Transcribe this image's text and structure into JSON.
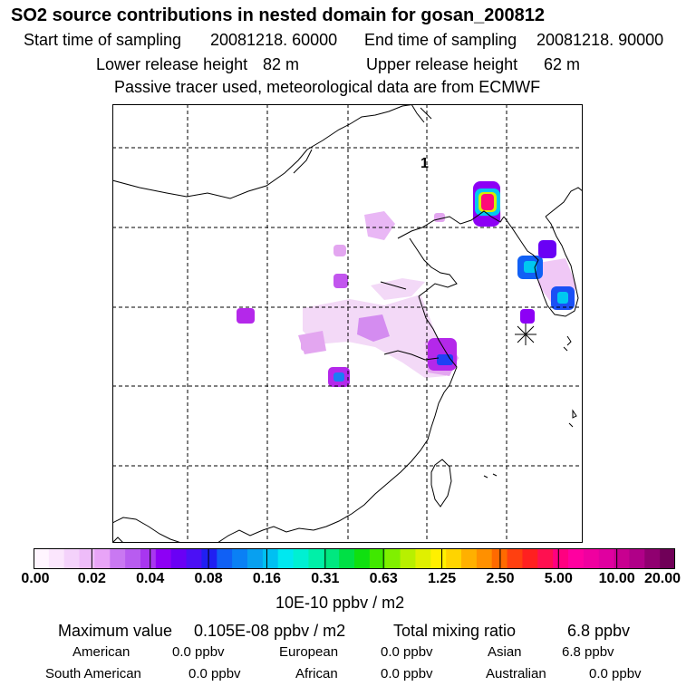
{
  "header": {
    "title": "SO2 source contributions in nested domain for gosan_200812",
    "start_label": "Start time of sampling",
    "start_value": "20081218. 60000",
    "end_label": "End time of sampling",
    "end_value": "20081218. 90000",
    "lower_label": "Lower release height",
    "lower_value": "82 m",
    "upper_label": "Upper release height",
    "upper_value": "62 m",
    "note": "Passive tracer used, meteorological data are from ECMWF"
  },
  "map": {
    "marker_label": "1",
    "receptor": "Gosan",
    "colors": {
      "very_low": "#f3d9f7",
      "low": "#e3a6f0",
      "mid": "#b428ea",
      "high": "#00c8f0",
      "peak": "#ff0a78"
    }
  },
  "colorbar": {
    "unit": "10E-10 ppbv / m2",
    "ticks": [
      "0.00",
      "0.02",
      "0.04",
      "0.08",
      "0.16",
      "0.31",
      "0.63",
      "1.25",
      "2.50",
      "5.00",
      "10.00",
      "20.00"
    ],
    "colors": [
      "#fff5ff",
      "#fbe6fd",
      "#f4d2fb",
      "#eebcf9",
      "#e8a4f7",
      "#c978f2",
      "#b85cf0",
      "#a836f0",
      "#8d00f5",
      "#6a00f5",
      "#4b10f5",
      "#2020f2",
      "#1060f5",
      "#0a80f5",
      "#08a0f0",
      "#00c0f2",
      "#00e8f0",
      "#00f0d2",
      "#00f0a8",
      "#00e880",
      "#00e045",
      "#10e010",
      "#40e800",
      "#80f000",
      "#b8f000",
      "#e0f000",
      "#fff000",
      "#ffd400",
      "#ffb000",
      "#ff9000",
      "#ff6a00",
      "#ff4010",
      "#ff2020",
      "#ff1050",
      "#ff0080",
      "#ff00a0",
      "#f000a0",
      "#e000a0",
      "#c80090",
      "#b00088",
      "#900070",
      "#700058"
    ]
  },
  "stats": {
    "max_label": "Maximum value",
    "max_value": "0.105E-08 ppbv / m2",
    "total_label": "Total mixing ratio",
    "total_value": "6.8 ppbv",
    "regions": [
      {
        "name": "American",
        "value": "0.0 ppbv"
      },
      {
        "name": "European",
        "value": "0.0 ppbv"
      },
      {
        "name": "Asian",
        "value": "6.8 ppbv"
      },
      {
        "name": "South American",
        "value": "0.0 ppbv"
      },
      {
        "name": "African",
        "value": "0.0 ppbv"
      },
      {
        "name": "Australian",
        "value": "0.0 ppbv"
      }
    ]
  }
}
